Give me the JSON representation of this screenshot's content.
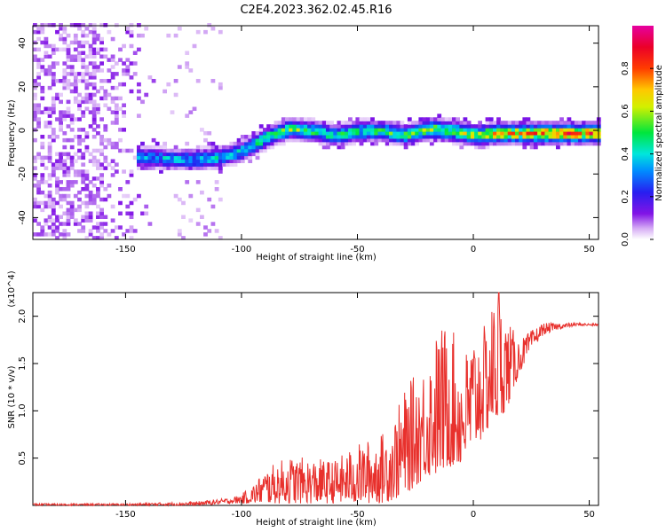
{
  "title": "C2E4.2023.362.02.45.R16",
  "chart_data": [
    {
      "type": "heatmap",
      "xlabel": "Height of straight line (km)",
      "ylabel": "Frequency (Hz)",
      "xlim": [
        -190,
        54
      ],
      "ylim": [
        -50,
        48
      ],
      "xticks": [
        -150,
        -100,
        -50,
        0,
        50
      ],
      "yticks": [
        -40,
        -20,
        0,
        20,
        40
      ],
      "colorbar": {
        "label": "Normalized spectral amplitude",
        "range": [
          0.0,
          1.0
        ],
        "ticks": [
          0.0,
          0.2,
          0.4,
          0.6,
          0.8
        ],
        "tick_labels": [
          "0.0",
          "0.2",
          "0.4",
          "0.6",
          "0.8"
        ],
        "colormap": "rainbow (purple→blue→cyan→green→yellow→red→magenta)"
      },
      "ridge_frequency_track": {
        "x": [
          -140,
          -130,
          -120,
          -110,
          -100,
          -90,
          -80,
          -70,
          -60,
          -50,
          -40,
          -30,
          -20,
          -10,
          0,
          10,
          20,
          30,
          40,
          50
        ],
        "y": [
          -13,
          -14,
          -14,
          -13,
          -10,
          -4,
          0,
          -1,
          -3,
          -1,
          -1,
          -3,
          0,
          -1,
          -3,
          -2,
          -2,
          -2,
          -2,
          -2
        ],
        "peak_amplitude": [
          0.4,
          0.45,
          0.45,
          0.5,
          0.5,
          0.6,
          0.65,
          0.6,
          0.55,
          0.55,
          0.6,
          0.6,
          0.7,
          0.7,
          0.75,
          0.9,
          0.9,
          0.95,
          0.95,
          0.95
        ]
      },
      "background_noise_region": {
        "x_from": -190,
        "x_to": -135,
        "amplitude": "0.0–0.1"
      },
      "grid": false
    },
    {
      "type": "line",
      "xlabel": "Height of straight line (km)",
      "ylabel": "SNR (10 * v/v)",
      "y_multiplier": "(x10^4)",
      "xlim": [
        -190,
        54
      ],
      "ylim": [
        0,
        2.25
      ],
      "xticks": [
        -150,
        -100,
        -50,
        0,
        50
      ],
      "yticks": [
        0.5,
        1.0,
        1.5,
        2.0
      ],
      "ytick_labels": [
        "0.5",
        "1.0",
        "1.5",
        "2.0"
      ],
      "series": [
        {
          "color": "#e8302c",
          "envelope_x": [
            -190,
            -150,
            -120,
            -105,
            -100,
            -95,
            -90,
            -80,
            -70,
            -60,
            -50,
            -40,
            -35,
            -30,
            -25,
            -20,
            -15,
            -10,
            -5,
            0,
            5,
            10,
            15,
            20,
            25,
            30,
            35,
            40,
            45,
            54
          ],
          "envelope_min": [
            0.0,
            0.0,
            0.0,
            0.02,
            0.02,
            0.02,
            0.02,
            0.02,
            0.02,
            0.02,
            0.02,
            0.02,
            0.05,
            0.1,
            0.2,
            0.3,
            0.3,
            0.4,
            0.4,
            0.55,
            0.75,
            0.85,
            1.05,
            1.4,
            1.65,
            1.8,
            1.85,
            1.88,
            1.9,
            1.9
          ],
          "envelope_max": [
            0.02,
            0.02,
            0.04,
            0.08,
            0.12,
            0.22,
            0.38,
            0.52,
            0.5,
            0.48,
            0.65,
            0.75,
            0.9,
            1.2,
            1.4,
            1.55,
            1.9,
            1.95,
            1.55,
            1.85,
            1.9,
            2.3,
            1.95,
            1.75,
            1.85,
            1.93,
            1.93,
            1.93,
            1.93,
            1.92
          ],
          "peak": {
            "x": 11,
            "y": 2.3
          }
        }
      ],
      "grid": false
    }
  ]
}
